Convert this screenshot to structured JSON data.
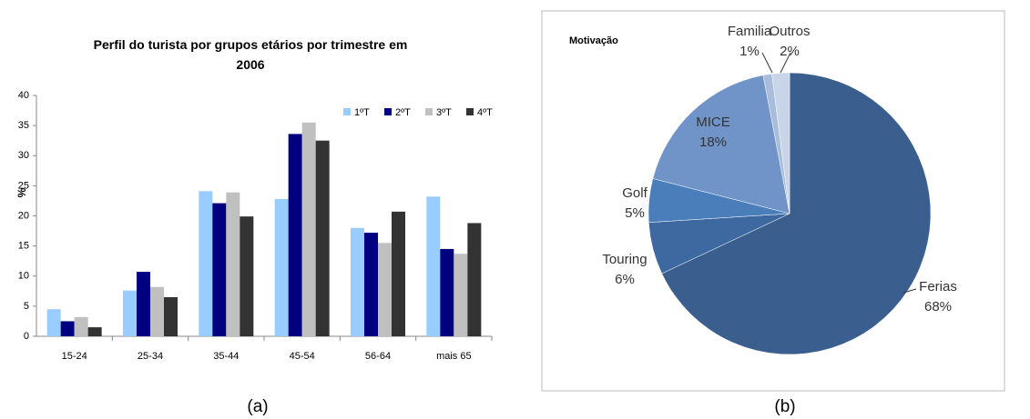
{
  "chart_data": [
    {
      "type": "bar",
      "title": "Perfil do turista por grupos etários por trimestre em 2006",
      "ylabel": "%",
      "caption": "(a)",
      "categories": [
        "15-24",
        "25-34",
        "35-44",
        "45-54",
        "56-64",
        "mais 65"
      ],
      "series": [
        {
          "name": "1ºT",
          "color": "#99ccff",
          "values": [
            4.5,
            7.6,
            24.1,
            22.8,
            18.0,
            23.2
          ]
        },
        {
          "name": "2ºT",
          "color": "#000080",
          "values": [
            2.5,
            10.7,
            22.1,
            33.6,
            17.2,
            14.5
          ]
        },
        {
          "name": "3ºT",
          "color": "#c0c0c0",
          "values": [
            3.2,
            8.2,
            23.9,
            35.5,
            15.5,
            13.7
          ]
        },
        {
          "name": "4ºT",
          "color": "#333333",
          "values": [
            1.5,
            6.5,
            19.9,
            32.5,
            20.7,
            18.8
          ]
        }
      ],
      "ylim": [
        0,
        40
      ],
      "yticks": [
        0,
        5,
        10,
        15,
        20,
        25,
        30,
        35,
        40
      ],
      "legend": "top-right"
    },
    {
      "type": "pie",
      "title": "Motivação",
      "caption": "(b)",
      "categories": [
        "Ferias",
        "Touring",
        "Golf",
        "MICE",
        "Familia",
        "Outros"
      ],
      "values": [
        68,
        6,
        5,
        18,
        1,
        2
      ],
      "value_labels": [
        "68%",
        "6%",
        "5%",
        "18%",
        "1%",
        "2%"
      ],
      "colors": [
        "#3a5f8f",
        "#3d69a0",
        "#4a7ebb",
        "#7094c8",
        "#a9bcdb",
        "#c8d4e8"
      ]
    }
  ]
}
